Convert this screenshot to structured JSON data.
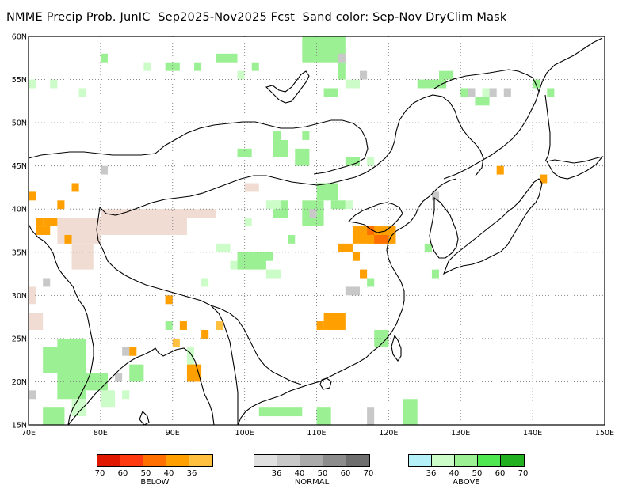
{
  "title": "NMME Precip Prob. JunIC  Sep2025-Nov2025 Fcst  Sand color: Sep-Nov DryClim Mask",
  "map": {
    "lon_range": [
      70,
      150
    ],
    "lat_range": [
      15,
      60
    ],
    "x_ticks": [
      "70E",
      "80E",
      "90E",
      "100E",
      "110E",
      "120E",
      "130E",
      "140E",
      "150E"
    ],
    "y_ticks": [
      "15N",
      "20N",
      "25N",
      "30N",
      "35N",
      "40N",
      "45N",
      "50N",
      "55N",
      "60N"
    ],
    "grid": "dotted",
    "colors": {
      "sand": "#f0dcd2",
      "above_light": "#ccfcc8",
      "above_mid": "#9cf094",
      "below_36": "#ffc040",
      "below_40": "#ffa000",
      "below_50": "#ff7000",
      "normal": "#c8c8c8",
      "coast": "#000000"
    }
  },
  "legend": {
    "below": {
      "title": "BELOW",
      "colors": [
        "#e01800",
        "#ff3a10",
        "#ff7000",
        "#ffa000",
        "#ffc040"
      ],
      "ticks": [
        "70",
        "60",
        "50",
        "40",
        "36"
      ]
    },
    "normal": {
      "title": "NORMAL",
      "colors": [
        "#e0e0e0",
        "#c8c8c8",
        "#aaaaaa",
        "#8c8c8c",
        "#6e6e6e"
      ],
      "ticks": [
        "36",
        "40",
        "50",
        "60",
        "70"
      ]
    },
    "above": {
      "title": "ABOVE",
      "colors": [
        "#b4f0f8",
        "#ccfcc8",
        "#9cf094",
        "#50e850",
        "#20b020"
      ],
      "ticks": [
        "36",
        "40",
        "50",
        "60",
        "70"
      ]
    }
  }
}
